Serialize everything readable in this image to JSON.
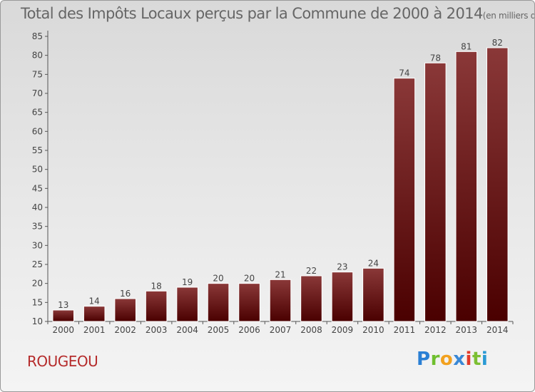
{
  "chart_data": {
    "type": "bar",
    "title": "Total des Impôts Locaux perçus par la Commune de 2000 à 2014",
    "unit": "(en milliers d'€)",
    "categories": [
      "2000",
      "2001",
      "2002",
      "2003",
      "2004",
      "2005",
      "2006",
      "2007",
      "2008",
      "2009",
      "2010",
      "2011",
      "2012",
      "2013",
      "2014"
    ],
    "values": [
      13,
      14,
      16,
      18,
      19,
      20,
      20,
      21,
      22,
      23,
      24,
      74,
      78,
      81,
      82
    ],
    "yticks": [
      10,
      15,
      20,
      25,
      30,
      35,
      40,
      45,
      50,
      55,
      60,
      65,
      70,
      75,
      80,
      85
    ],
    "ylim": [
      10,
      85
    ],
    "grid": false,
    "bar_color": "#5a0a0a"
  },
  "commune": "ROUGEOU",
  "logo": {
    "p": "P",
    "r": "r",
    "o": "o",
    "x": "x",
    "i": "i",
    "t": "t",
    "i2": "i"
  }
}
